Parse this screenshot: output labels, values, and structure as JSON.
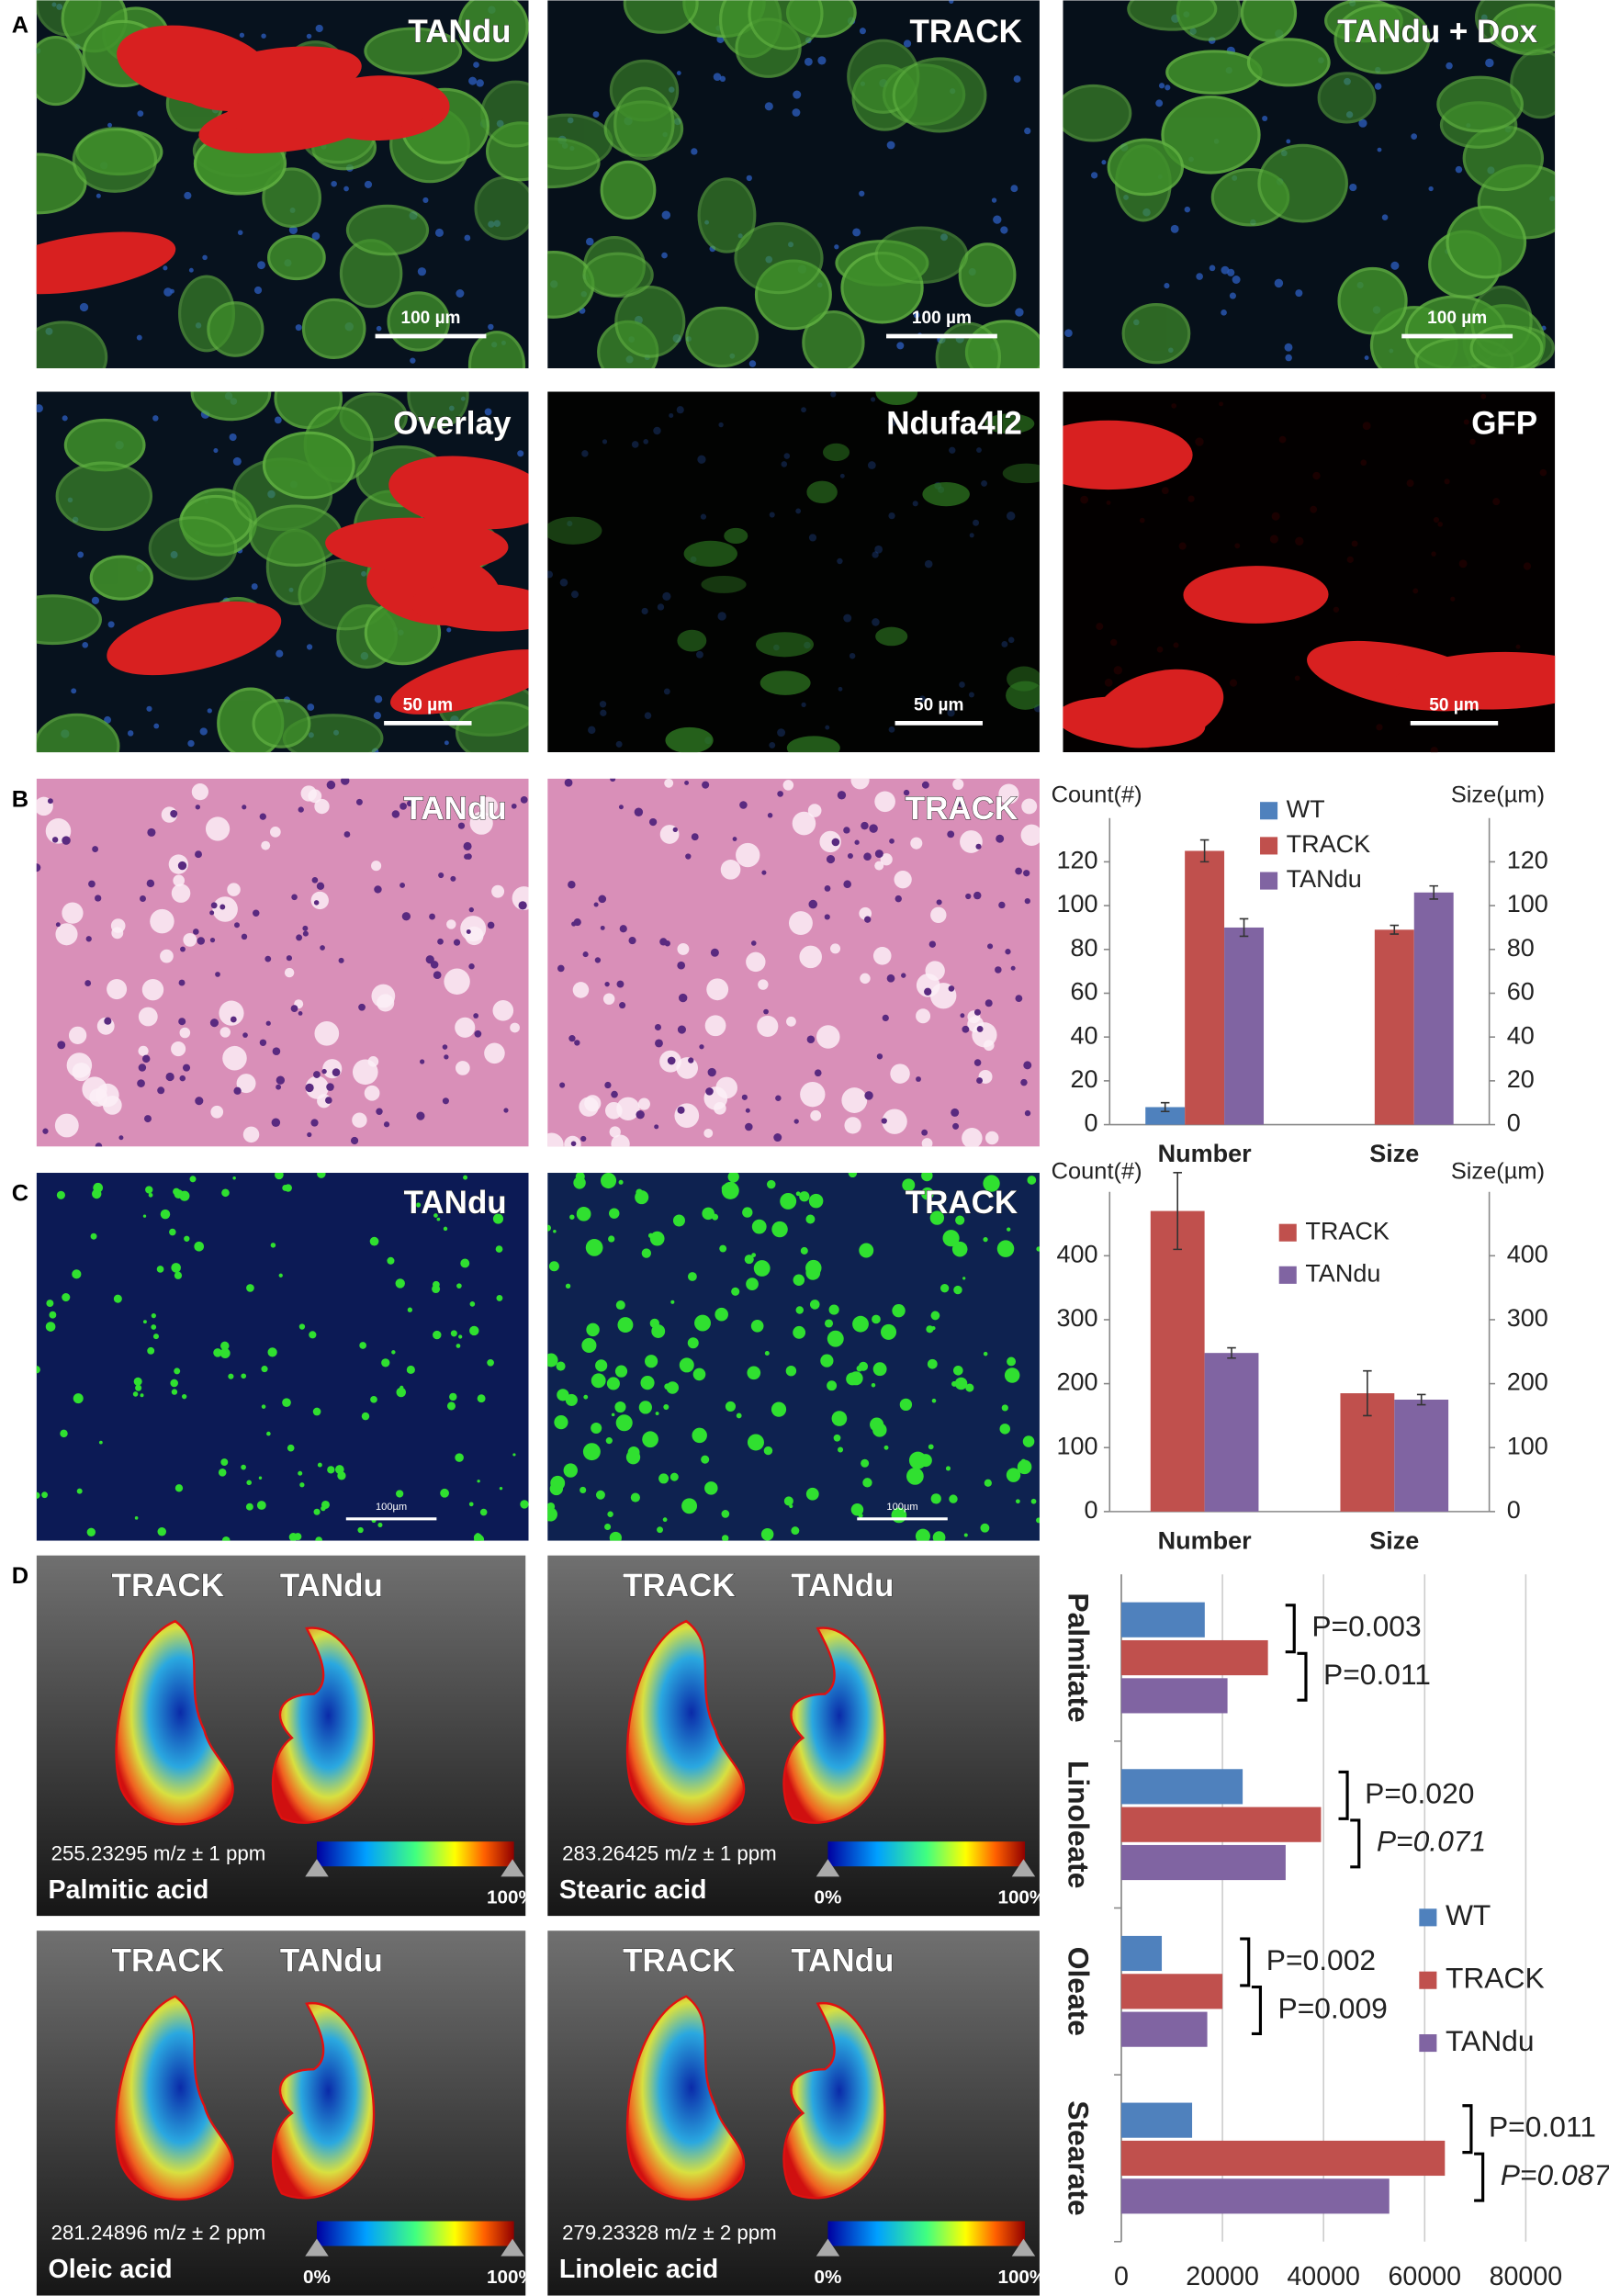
{
  "panel_labels": [
    "A",
    "B",
    "C",
    "D"
  ],
  "panel_a": [
    {
      "label": "TANdu",
      "scale_bar": "100 µm"
    },
    {
      "label": "TRACK",
      "scale_bar": "100 µm"
    },
    {
      "label": "TANdu + Dox",
      "scale_bar": "100 µm"
    },
    {
      "label": "Overlay",
      "scale_bar": "50 µm"
    },
    {
      "label": "Ndufa4l2",
      "scale_bar": "50 µm"
    },
    {
      "label": "GFP",
      "scale_bar": "50 µm"
    }
  ],
  "panel_b": [
    {
      "label": "TANdu"
    },
    {
      "label": "TRACK"
    }
  ],
  "panel_c": [
    {
      "label": "TANdu",
      "scale_bar": "100µm"
    },
    {
      "label": "TRACK",
      "scale_bar": "100µm"
    }
  ],
  "panel_d": [
    {
      "labels": [
        "TRACK",
        "TANdu"
      ],
      "mz": "255.23295 m/z ± 1 ppm",
      "compound": "Palmitic acid",
      "colorbar": [
        "100%"
      ]
    },
    {
      "labels": [
        "TRACK",
        "TANdu"
      ],
      "mz": "283.26425 m/z ± 1 ppm",
      "compound": "Stearic acid",
      "colorbar": [
        "0%",
        "100%"
      ]
    },
    {
      "labels": [
        "TRACK",
        "TANdu"
      ],
      "mz": "281.24896 m/z ± 2 ppm",
      "compound": "Oleic acid",
      "colorbar": [
        "0%",
        "100%"
      ]
    },
    {
      "labels": [
        "TRACK",
        "TANdu"
      ],
      "mz": "279.23328 m/z ± 2 ppm",
      "compound": "Linoleic acid",
      "colorbar": [
        "0%",
        "100%"
      ]
    }
  ],
  "chart_data": [
    {
      "type": "bar",
      "y_label": "Count(#)",
      "y2_label": "Size(µm)",
      "categories": [
        "Number",
        "Size"
      ],
      "series": [
        {
          "name": "WT",
          "color": "#4f81bd",
          "values": [
            8,
            null
          ],
          "errors": [
            2,
            null
          ]
        },
        {
          "name": "TRACK",
          "color": "#c0504d",
          "values": [
            125,
            89
          ],
          "errors": [
            5,
            2
          ]
        },
        {
          "name": "TANdu",
          "color": "#8064a2",
          "values": [
            90,
            106
          ],
          "errors": [
            4,
            3
          ]
        }
      ],
      "ylim": [
        0,
        140
      ],
      "yticks": [
        0,
        20,
        40,
        60,
        80,
        100,
        120
      ],
      "y2lim": [
        0,
        140
      ],
      "y2ticks": [
        0,
        20,
        40,
        60,
        80,
        100,
        120
      ],
      "grid": false,
      "legend": "upper center"
    },
    {
      "type": "bar",
      "y_label": "Count(#)",
      "y2_label": "Size(µm)",
      "categories": [
        "Number",
        "Size"
      ],
      "series": [
        {
          "name": "TRACK",
          "color": "#c0504d",
          "values": [
            470,
            185
          ],
          "errors": [
            60,
            35
          ]
        },
        {
          "name": "TANdu",
          "color": "#8064a2",
          "values": [
            248,
            175
          ],
          "errors": [
            8,
            8
          ]
        }
      ],
      "ylim": [
        0,
        500
      ],
      "yticks": [
        0,
        100,
        200,
        300,
        400
      ],
      "y2lim": [
        0,
        500
      ],
      "y2ticks": [
        0,
        100,
        200,
        300,
        400
      ],
      "grid": false,
      "legend": "upper right"
    },
    {
      "type": "barh",
      "categories": [
        "Palmitate",
        "Linoleate",
        "Oleate",
        "Stearate"
      ],
      "series": [
        {
          "name": "WT",
          "color": "#4f81bd",
          "values": [
            16500,
            24000,
            8000,
            14000
          ]
        },
        {
          "name": "TRACK",
          "color": "#c0504d",
          "values": [
            29000,
            39500,
            20000,
            64000
          ]
        },
        {
          "name": "TANdu",
          "color": "#8064a2",
          "values": [
            21000,
            32500,
            17000,
            53000
          ]
        }
      ],
      "xlim": [
        0,
        80000
      ],
      "xticks": [
        0,
        20000,
        40000,
        60000,
        80000
      ],
      "grid": true,
      "legend": "center right",
      "annotations": [
        {
          "text": "P=0.003",
          "italic": false
        },
        {
          "text": "P=0.011",
          "italic": false
        },
        {
          "text": "P=0.020",
          "italic": false
        },
        {
          "text": "P=0.071",
          "italic": true
        },
        {
          "text": "P=0.002",
          "italic": false
        },
        {
          "text": "P=0.009",
          "italic": false
        },
        {
          "text": "P=0.011",
          "italic": false
        },
        {
          "text": "P=0.087",
          "italic": true
        }
      ]
    }
  ]
}
